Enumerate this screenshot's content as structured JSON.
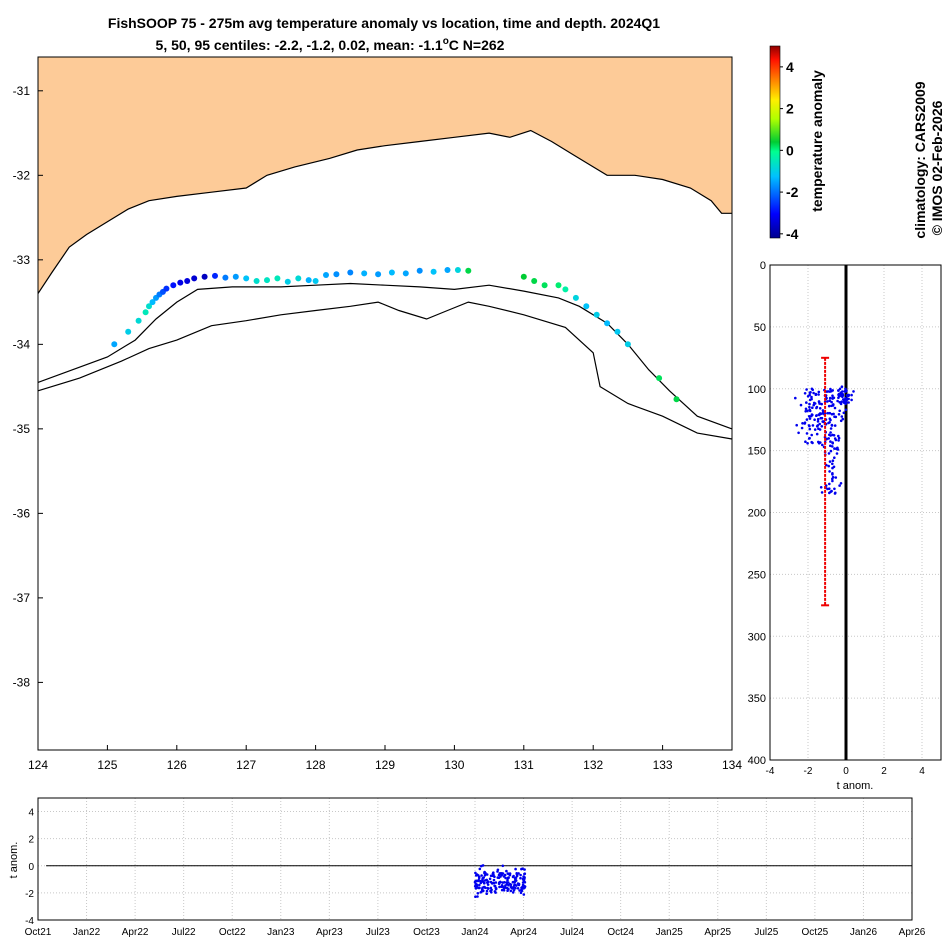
{
  "header": {
    "title_line1": "FishSOOP 75 - 275m avg temperature anomaly vs location, time and depth. 2024Q1",
    "title_line2_prefix": "5, 50, 95 centiles: -2.2, -1.2, 0.02, mean: -1.1",
    "title_line2_unit": "o",
    "title_line2_suffix": "C N=262"
  },
  "side_text": {
    "climatology": "climatology: CARS2009",
    "copyright": "© IMOS 02-Feb-2026"
  },
  "colors": {
    "land": "#fdcb98",
    "coast": "#000000",
    "scatter_blue": "#0000ee",
    "error_bar": "#ee0000"
  },
  "chart_data": [
    {
      "type": "scatter",
      "name": "map",
      "xlim": [
        124,
        134
      ],
      "ylim": [
        -38.8,
        -30.6
      ],
      "x_ticks": [
        124,
        125,
        126,
        127,
        128,
        129,
        130,
        131,
        132,
        133,
        134
      ],
      "x_tick_labels": [
        "124",
        "125",
        "126",
        "127",
        "128",
        "129",
        "130",
        "131",
        "132",
        "133",
        "134"
      ],
      "y_ticks": [
        -31,
        -32,
        -33,
        -34,
        -35,
        -36,
        -37,
        -38
      ],
      "y_tick_labels": [
        "-31",
        "-32",
        "-33",
        "-34",
        "-35",
        "-36",
        "-37",
        "-38"
      ],
      "coastline": [
        [
          124,
          -33.4
        ],
        [
          124.2,
          -33.15
        ],
        [
          124.45,
          -32.85
        ],
        [
          124.7,
          -32.7
        ],
        [
          125.0,
          -32.55
        ],
        [
          125.3,
          -32.4
        ],
        [
          125.6,
          -32.3
        ],
        [
          126.0,
          -32.25
        ],
        [
          126.5,
          -32.2
        ],
        [
          127.0,
          -32.15
        ],
        [
          127.3,
          -32.0
        ],
        [
          127.7,
          -31.9
        ],
        [
          128.2,
          -31.8
        ],
        [
          128.6,
          -31.7
        ],
        [
          129.0,
          -31.65
        ],
        [
          129.5,
          -31.6
        ],
        [
          130.0,
          -31.55
        ],
        [
          130.5,
          -31.5
        ],
        [
          130.8,
          -31.55
        ],
        [
          131.1,
          -31.47
        ],
        [
          131.4,
          -31.6
        ],
        [
          131.7,
          -31.75
        ],
        [
          132.0,
          -31.9
        ],
        [
          132.2,
          -32.0
        ],
        [
          132.6,
          -32.0
        ],
        [
          133.0,
          -32.05
        ],
        [
          133.4,
          -32.15
        ],
        [
          133.7,
          -32.3
        ],
        [
          133.85,
          -32.45
        ],
        [
          134,
          -32.45
        ]
      ],
      "contour_200m": [
        [
          124,
          -34.45
        ],
        [
          124.5,
          -34.3
        ],
        [
          125.0,
          -34.15
        ],
        [
          125.4,
          -33.95
        ],
        [
          125.7,
          -33.7
        ],
        [
          126.0,
          -33.5
        ],
        [
          126.3,
          -33.35
        ],
        [
          126.8,
          -33.32
        ],
        [
          127.5,
          -33.32
        ],
        [
          128.0,
          -33.3
        ],
        [
          128.5,
          -33.28
        ],
        [
          129.0,
          -33.3
        ],
        [
          129.5,
          -33.32
        ],
        [
          130.0,
          -33.35
        ],
        [
          130.5,
          -33.3
        ],
        [
          131.0,
          -33.37
        ],
        [
          131.5,
          -33.45
        ],
        [
          131.8,
          -33.55
        ],
        [
          132.2,
          -33.75
        ],
        [
          132.5,
          -34.0
        ],
        [
          132.8,
          -34.3
        ],
        [
          133.1,
          -34.55
        ],
        [
          133.5,
          -34.85
        ],
        [
          134,
          -35.0
        ]
      ],
      "contour_1000m": [
        [
          124,
          -34.55
        ],
        [
          124.6,
          -34.4
        ],
        [
          125.2,
          -34.2
        ],
        [
          125.6,
          -34.05
        ],
        [
          126.0,
          -33.95
        ],
        [
          126.5,
          -33.78
        ],
        [
          127.0,
          -33.72
        ],
        [
          127.5,
          -33.65
        ],
        [
          128.0,
          -33.6
        ],
        [
          128.5,
          -33.55
        ],
        [
          128.9,
          -33.5
        ],
        [
          129.2,
          -33.6
        ],
        [
          129.6,
          -33.7
        ],
        [
          129.9,
          -33.6
        ],
        [
          130.2,
          -33.5
        ],
        [
          130.5,
          -33.55
        ],
        [
          131.0,
          -33.65
        ],
        [
          131.6,
          -33.8
        ],
        [
          132.0,
          -34.1
        ],
        [
          132.1,
          -34.5
        ],
        [
          132.5,
          -34.7
        ],
        [
          133.0,
          -34.85
        ],
        [
          133.5,
          -35.05
        ],
        [
          134,
          -35.12
        ]
      ],
      "points": [
        [
          125.1,
          -34.0,
          -1.5
        ],
        [
          125.3,
          -33.85,
          -1.0
        ],
        [
          125.45,
          -33.72,
          -0.8
        ],
        [
          125.55,
          -33.62,
          -0.5
        ],
        [
          125.6,
          -33.55,
          -0.7
        ],
        [
          125.65,
          -33.5,
          -1.3
        ],
        [
          125.7,
          -33.45,
          -1.6
        ],
        [
          125.75,
          -33.41,
          -1.9
        ],
        [
          125.8,
          -33.38,
          -2.3
        ],
        [
          125.85,
          -33.34,
          -2.6
        ],
        [
          125.95,
          -33.3,
          -2.9
        ],
        [
          126.05,
          -33.27,
          -3.3
        ],
        [
          126.15,
          -33.25,
          -3.4
        ],
        [
          126.25,
          -33.22,
          -3.5
        ],
        [
          126.4,
          -33.2,
          -3.7
        ],
        [
          126.55,
          -33.19,
          -2.7
        ],
        [
          126.7,
          -33.21,
          -1.9
        ],
        [
          126.85,
          -33.2,
          -1.6
        ],
        [
          127.0,
          -33.22,
          -1.2
        ],
        [
          127.15,
          -33.25,
          -0.7
        ],
        [
          127.3,
          -33.24,
          -0.6
        ],
        [
          127.45,
          -33.22,
          -0.5
        ],
        [
          127.6,
          -33.26,
          -1.0
        ],
        [
          127.75,
          -33.22,
          -0.8
        ],
        [
          127.9,
          -33.24,
          -1.4
        ],
        [
          128.0,
          -33.25,
          -1.1
        ],
        [
          128.15,
          -33.18,
          -1.5
        ],
        [
          128.3,
          -33.17,
          -1.7
        ],
        [
          128.5,
          -33.15,
          -1.8
        ],
        [
          128.7,
          -33.16,
          -1.4
        ],
        [
          128.9,
          -33.17,
          -1.6
        ],
        [
          129.1,
          -33.15,
          -1.3
        ],
        [
          129.3,
          -33.16,
          -1.5
        ],
        [
          129.5,
          -33.13,
          -1.7
        ],
        [
          129.7,
          -33.14,
          -1.2
        ],
        [
          129.9,
          -33.12,
          -1.5
        ],
        [
          130.05,
          -33.12,
          -0.9
        ],
        [
          130.2,
          -33.13,
          0.3
        ],
        [
          131.0,
          -33.2,
          0.4
        ],
        [
          131.15,
          -33.25,
          0.3
        ],
        [
          131.3,
          -33.3,
          0.2
        ],
        [
          131.5,
          -33.3,
          0.1
        ],
        [
          131.6,
          -33.35,
          -0.3
        ],
        [
          131.75,
          -33.45,
          -0.9
        ],
        [
          131.9,
          -33.55,
          -1.2
        ],
        [
          132.05,
          -33.65,
          -1.0
        ],
        [
          132.2,
          -33.75,
          -1.3
        ],
        [
          132.35,
          -33.85,
          -1.1
        ],
        [
          132.5,
          -34.0,
          -1.0
        ],
        [
          132.95,
          -34.4,
          0.2
        ],
        [
          133.2,
          -34.65,
          0.3
        ]
      ]
    },
    {
      "type": "scatter",
      "name": "depth_profile",
      "xlabel": "t anom.",
      "xlim": [
        -4,
        5
      ],
      "ylim": [
        400,
        0
      ],
      "x_ticks": [
        -4,
        -2,
        0,
        2,
        4
      ],
      "x_tick_labels": [
        "-4",
        "-2",
        "0",
        "2",
        "4"
      ],
      "y_ticks": [
        0,
        50,
        100,
        150,
        200,
        250,
        300,
        350,
        400
      ],
      "y_tick_labels": [
        "0",
        "50",
        "100",
        "150",
        "200",
        "250",
        "300",
        "350",
        "400"
      ],
      "mean_line": {
        "x": -1.1,
        "y_top": 75,
        "y_bottom": 275
      },
      "zero_line_x": 0
    },
    {
      "type": "scatter",
      "name": "time_series",
      "ylabel": "t anom.",
      "ylim": [
        -4,
        5
      ],
      "y_ticks": [
        -4,
        -2,
        0,
        2,
        4
      ],
      "y_tick_labels": [
        "-4",
        "-2",
        "0",
        "2",
        "4"
      ],
      "x_tick_labels": [
        "Oct21",
        "Jan22",
        "Apr22",
        "Jul22",
        "Oct22",
        "Jan23",
        "Apr23",
        "Jul23",
        "Oct23",
        "Jan24",
        "Apr24",
        "Jul24",
        "Oct24",
        "Jan25",
        "Apr25",
        "Jul25",
        "Oct25",
        "Jan26",
        "Apr26"
      ],
      "x_tick_months": [
        0,
        3,
        6,
        9,
        12,
        15,
        18,
        21,
        24,
        27,
        30,
        33,
        36,
        39,
        42,
        45,
        48,
        51,
        54
      ],
      "data_span_months": [
        27.0,
        30.1
      ],
      "zero_line_y": 0
    }
  ],
  "colorbar": {
    "label": "temperature anomaly",
    "range": [
      -4.2,
      5
    ],
    "ticks": [
      4,
      2,
      0,
      -2,
      -4
    ],
    "tick_labels": [
      "4",
      "2",
      "0",
      "-2",
      "-4"
    ]
  }
}
